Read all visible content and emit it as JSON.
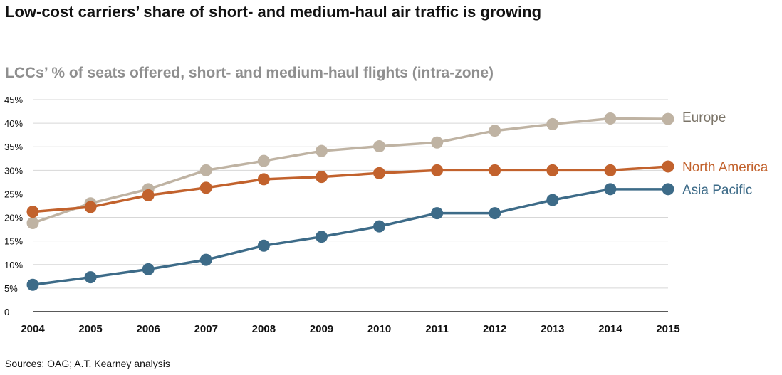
{
  "title": "Low-cost carriers’ share of short- and medium-haul air traffic is growing",
  "subtitle": "LCCs’ % of seats offered, short- and medium-haul flights (intra-zone)",
  "source": "Sources: OAG; A.T. Kearney analysis",
  "chart_data": {
    "type": "line",
    "title": "LCCs’ % of seats offered, short- and medium-haul flights (intra-zone)",
    "xlabel": "",
    "ylabel": "",
    "categories": [
      "2004",
      "2005",
      "2006",
      "2007",
      "2008",
      "2009",
      "2010",
      "2011",
      "2012",
      "2013",
      "2014",
      "2015"
    ],
    "ylim": [
      0,
      45
    ],
    "yticks": [
      0,
      5,
      10,
      15,
      20,
      25,
      30,
      35,
      40,
      45
    ],
    "ytick_labels": [
      "0",
      "5%",
      "10%",
      "15%",
      "20%",
      "25%",
      "30%",
      "35%",
      "40%",
      "45%"
    ],
    "grid": true,
    "legend": "right-end labels",
    "series": [
      {
        "name": "Europe",
        "color": "#bfb3a3",
        "label_color": "#7b7468",
        "values": [
          18.8,
          23,
          26,
          30,
          32,
          34.1,
          35.1,
          35.9,
          38.4,
          39.8,
          41,
          40.9
        ]
      },
      {
        "name": "North America",
        "color": "#c2622d",
        "label_color": "#c2622d",
        "values": [
          21.2,
          22.2,
          24.7,
          26.3,
          28.1,
          28.6,
          29.4,
          30,
          30,
          30,
          30,
          30.8
        ]
      },
      {
        "name": "Asia Pacific",
        "color": "#3d6b88",
        "label_color": "#3d6b88",
        "values": [
          5.7,
          7.3,
          9,
          11,
          14,
          15.9,
          18.1,
          20.9,
          20.9,
          23.7,
          26,
          26
        ]
      }
    ]
  }
}
